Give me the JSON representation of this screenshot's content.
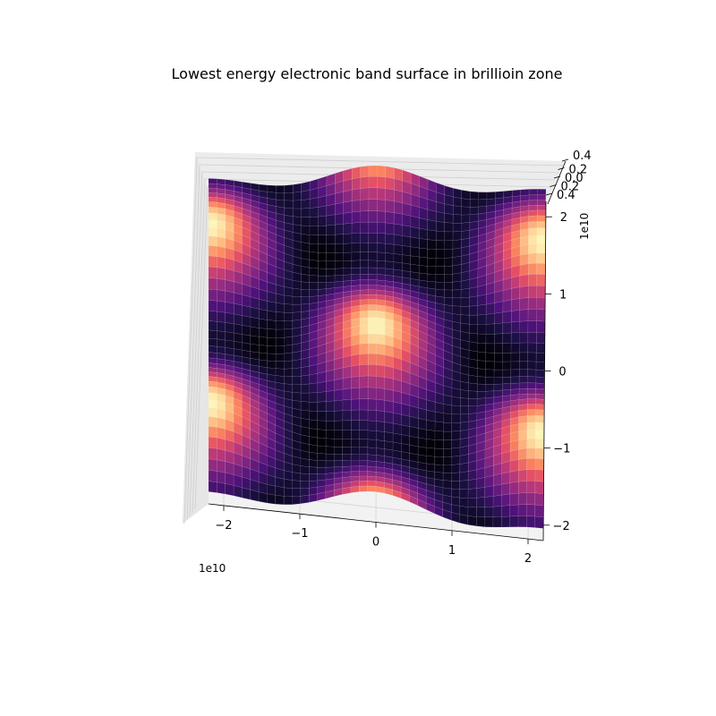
{
  "chart_data": {
    "type": "surface",
    "title": "Lowest energy electronic band surface in brillioin zone",
    "colormap": "magma",
    "x_range": [
      -2.2,
      2.2
    ],
    "y_range": [
      -2.2,
      2.2
    ],
    "z_range": [
      -0.4,
      0.4
    ],
    "x_ticks": [
      "−2",
      "−1",
      "0",
      "1",
      "2"
    ],
    "y_ticks": [
      "−2",
      "−1",
      "0",
      "1",
      "2"
    ],
    "z_ticks": [
      "0.4",
      "0.2",
      "0.0",
      "0.2",
      "0.4"
    ],
    "x_multiplier": "1e10",
    "y_multiplier": "1e10",
    "grid": true,
    "description": "Periodic band-energy surface with bright maxima arranged in a hexagonal pattern over the Brillouin zone"
  }
}
